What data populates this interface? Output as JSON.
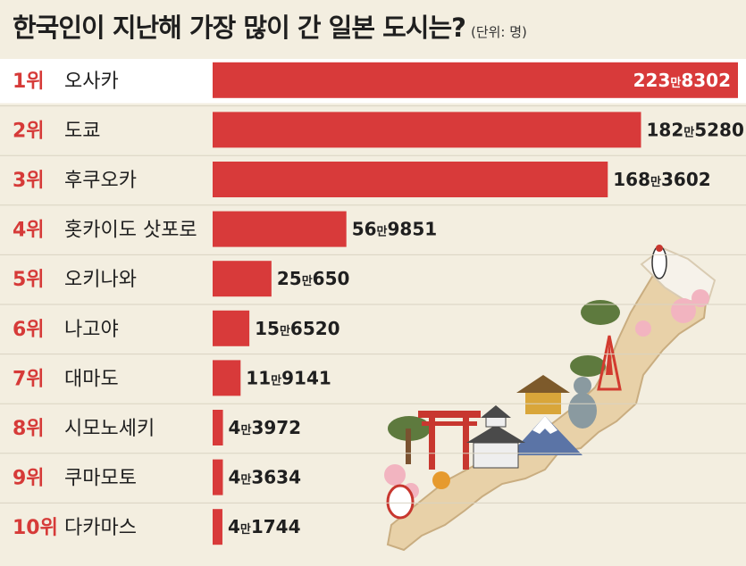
{
  "header": {
    "title": "한국인이 지난해 가장 많이 간 일본 도시는?",
    "unit": "(단위: 명)"
  },
  "colors": {
    "bar": "#d83a3a",
    "rank_text": "#d63a38",
    "background": "#f3eee0",
    "highlight_row": "#ffffff",
    "divider": "#d9d3c2"
  },
  "chart_data": {
    "type": "bar",
    "orientation": "horizontal",
    "categories": [
      "오사카",
      "도쿄",
      "후쿠오카",
      "홋카이도 삿포로",
      "오키나와",
      "나고야",
      "대마도",
      "시모노세키",
      "쿠마모토",
      "다카마스"
    ],
    "ranks": [
      "1위",
      "2위",
      "3위",
      "4위",
      "5위",
      "6위",
      "7위",
      "8위",
      "9위",
      "10위"
    ],
    "values": [
      2238302,
      1825280,
      1683602,
      569851,
      250650,
      156520,
      119141,
      43972,
      43634,
      41744
    ],
    "value_labels": [
      {
        "man": "223",
        "unit": "만",
        "rest": "8302"
      },
      {
        "man": "182",
        "unit": "만",
        "rest": "5280"
      },
      {
        "man": "168",
        "unit": "만",
        "rest": "3602"
      },
      {
        "man": "56",
        "unit": "만",
        "rest": "9851"
      },
      {
        "man": "25",
        "unit": "만",
        "rest": "650"
      },
      {
        "man": "15",
        "unit": "만",
        "rest": "6520"
      },
      {
        "man": "11",
        "unit": "만",
        "rest": "9141"
      },
      {
        "man": "4",
        "unit": "만",
        "rest": "3972"
      },
      {
        "man": "4",
        "unit": "만",
        "rest": "3634"
      },
      {
        "man": "4",
        "unit": "만",
        "rest": "1744"
      }
    ],
    "title": "한국인이 지난해 가장 많이 간 일본 도시는?",
    "xlabel": "",
    "ylabel": "",
    "xlim": [
      0,
      2238302
    ],
    "grid": false,
    "legend": "none"
  }
}
